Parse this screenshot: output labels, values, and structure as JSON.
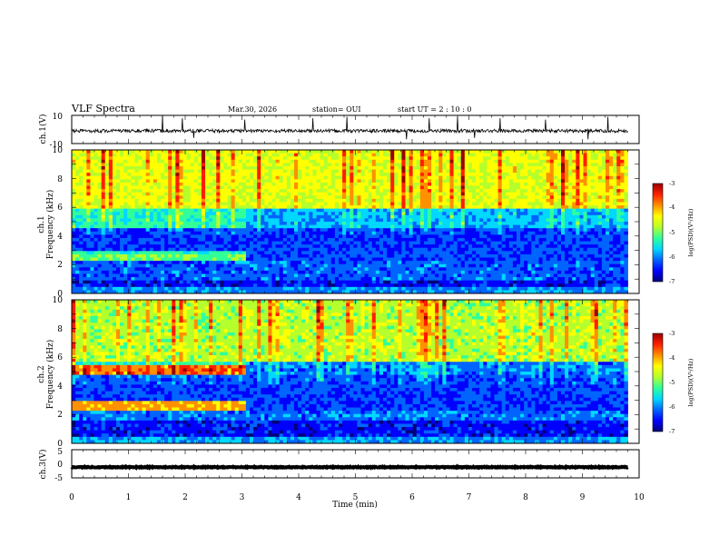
{
  "header": {
    "title": "VLF Spectra",
    "date": "Mar.30, 2026",
    "station": "station= OUI",
    "start": "start  UT =   2  : 10 : 0"
  },
  "colors": {
    "colormap": [
      "#00007a",
      "#0000ff",
      "#0064ff",
      "#00d8ff",
      "#30ff9a",
      "#b4ff2c",
      "#ffff00",
      "#ff9000",
      "#ff1e00",
      "#9a0000"
    ]
  },
  "chart_data": [
    {
      "type": "line",
      "panel": "ch1-waveform",
      "ylabel": "ch.1(V)",
      "ylim": [
        -10,
        10
      ],
      "yticks": [
        "10",
        "-10"
      ],
      "baseline": -1,
      "noise_amplitude": 1.2,
      "spikes": [
        {
          "t": 1.6,
          "v": 10
        },
        {
          "t": 1.95,
          "v": 8
        },
        {
          "t": 2.15,
          "v": -6
        },
        {
          "t": 3.05,
          "v": 7
        },
        {
          "t": 4.25,
          "v": 8
        },
        {
          "t": 4.85,
          "v": 9
        },
        {
          "t": 5.9,
          "v": -7
        },
        {
          "t": 6.3,
          "v": 8
        },
        {
          "t": 6.8,
          "v": 9
        },
        {
          "t": 7.1,
          "v": -6
        },
        {
          "t": 7.55,
          "v": 8
        },
        {
          "t": 8.35,
          "v": 7
        },
        {
          "t": 9.1,
          "v": -7
        },
        {
          "t": 9.45,
          "v": 9
        }
      ]
    },
    {
      "type": "heatmap",
      "panel": "ch1-spectrogram",
      "ylabel1": "ch.1",
      "ylabel2": "Frequency  (kHz)",
      "xlim": [
        0,
        10
      ],
      "ylim": [
        0,
        10
      ],
      "yticks": [
        "0",
        "2",
        "4",
        "6",
        "8",
        "10"
      ],
      "data_end_min": 9.8,
      "base_levels": [
        {
          "f": [
            0,
            0.4
          ],
          "v": 0.28
        },
        {
          "f": [
            0.4,
            1.0
          ],
          "v": 0.15
        },
        {
          "f": [
            1.0,
            2.2
          ],
          "v": 0.24
        },
        {
          "f": [
            2.2,
            3.0
          ],
          "v": 0.42
        },
        {
          "f": [
            3.0,
            4.6
          ],
          "v": 0.2
        },
        {
          "f": [
            4.6,
            6.0
          ],
          "v": 0.42
        },
        {
          "f": [
            6.0,
            10.0
          ],
          "v": 0.62
        }
      ],
      "bands": [
        {
          "f": [
            2.2,
            2.8
          ],
          "t": [
            0,
            3.1
          ],
          "v": 0.48
        },
        {
          "f": [
            4.6,
            6.0
          ],
          "t": [
            3.1,
            9.8
          ],
          "v": 0.32
        },
        {
          "f": [
            2.2,
            3.0
          ],
          "t": [
            3.1,
            9.8
          ],
          "v": 0.22
        }
      ],
      "colorbar": {
        "label": "log(PSD)(V²/Hz)",
        "range": [
          -7,
          -3
        ],
        "ticks": [
          "-3",
          "-4",
          "-5",
          "-6",
          "-7"
        ]
      }
    },
    {
      "type": "heatmap",
      "panel": "ch2-spectrogram",
      "ylabel1": "ch.2",
      "ylabel2": "Frequency  (kHz)",
      "xlim": [
        0,
        10
      ],
      "ylim": [
        0,
        10
      ],
      "yticks": [
        "0",
        "2",
        "4",
        "6",
        "8",
        "10"
      ],
      "data_end_min": 9.8,
      "base_levels": [
        {
          "f": [
            0,
            0.4
          ],
          "v": 0.3
        },
        {
          "f": [
            0.4,
            1.5
          ],
          "v": 0.16
        },
        {
          "f": [
            1.5,
            2.3
          ],
          "v": 0.26
        },
        {
          "f": [
            2.3,
            3.0
          ],
          "v": 0.38
        },
        {
          "f": [
            3.0,
            4.7
          ],
          "v": 0.22
        },
        {
          "f": [
            4.7,
            5.6
          ],
          "v": 0.4
        },
        {
          "f": [
            5.6,
            10.0
          ],
          "v": 0.55
        }
      ],
      "bands": [
        {
          "f": [
            4.7,
            5.4
          ],
          "t": [
            0,
            3.1
          ],
          "v": 0.76
        },
        {
          "f": [
            2.3,
            3.0
          ],
          "t": [
            0,
            3.1
          ],
          "v": 0.72
        },
        {
          "f": [
            4.7,
            5.6
          ],
          "t": [
            3.1,
            9.8
          ],
          "v": 0.26
        },
        {
          "f": [
            2.3,
            3.0
          ],
          "t": [
            3.1,
            9.8
          ],
          "v": 0.2
        }
      ],
      "colorbar": {
        "label": "log(PSD)(V²/Hz)",
        "range": [
          -7,
          -3
        ],
        "ticks": [
          "-3",
          "-4",
          "-5",
          "-6",
          "-7"
        ]
      }
    },
    {
      "type": "line",
      "panel": "ch3-waveform",
      "ylabel": "ch.3(V)",
      "ylim": [
        -5,
        5
      ],
      "yticks": [
        "5",
        "0",
        "-5"
      ],
      "baseline": -1.2,
      "noise_amplitude": 0.15,
      "spikes": []
    }
  ],
  "xaxis": {
    "label": "Time  (min)",
    "ticks": [
      "0",
      "1",
      "2",
      "3",
      "4",
      "5",
      "6",
      "7",
      "8",
      "9",
      "10"
    ]
  }
}
